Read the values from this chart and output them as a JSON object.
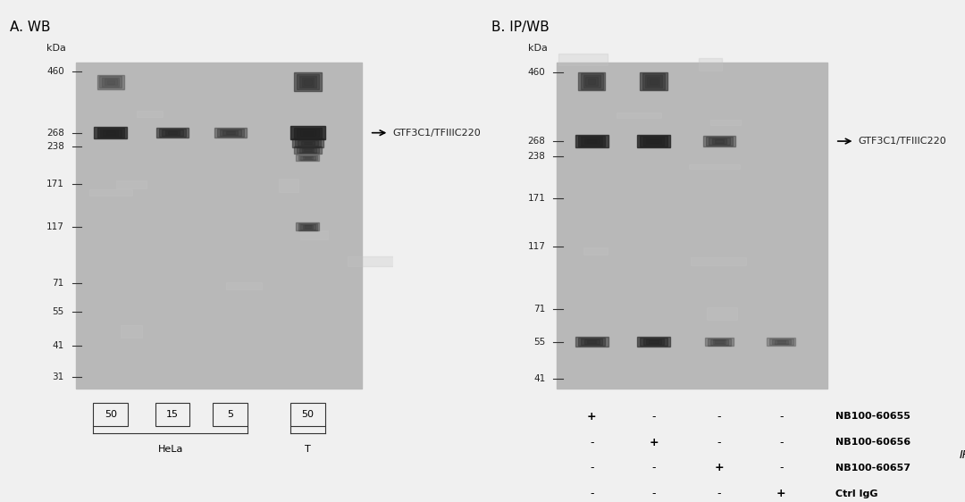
{
  "bg_color": "#d8d8d8",
  "panel_bg": "#c8c8c8",
  "title_A": "A. WB",
  "title_B": "B. IP/WB",
  "kda_label": "kDa",
  "markers_A": [
    460,
    268,
    238,
    171,
    117,
    71,
    55,
    41,
    31
  ],
  "markers_B": [
    460,
    268,
    238,
    171,
    117,
    71,
    55,
    41
  ],
  "label_GTF": "GTF3C1/TFIIIC220",
  "lane_labels_A": [
    "50",
    "15",
    "5",
    "50"
  ],
  "group_labels_A": [
    [
      "HeLa",
      3
    ],
    [
      "T",
      1
    ]
  ],
  "ip_rows": [
    {
      "symbols": [
        "+",
        "-",
        "-",
        "-"
      ],
      "label": "NB100-60655"
    },
    {
      "symbols": [
        "-",
        "+",
        "-",
        "-"
      ],
      "label": "NB100-60656"
    },
    {
      "symbols": [
        "-",
        "-",
        "+",
        "-"
      ],
      "label": "NB100-60657"
    },
    {
      "symbols": [
        "-",
        "-",
        "-",
        "+"
      ],
      "label": "Ctrl IgG"
    }
  ],
  "ip_brace_label": "IP"
}
